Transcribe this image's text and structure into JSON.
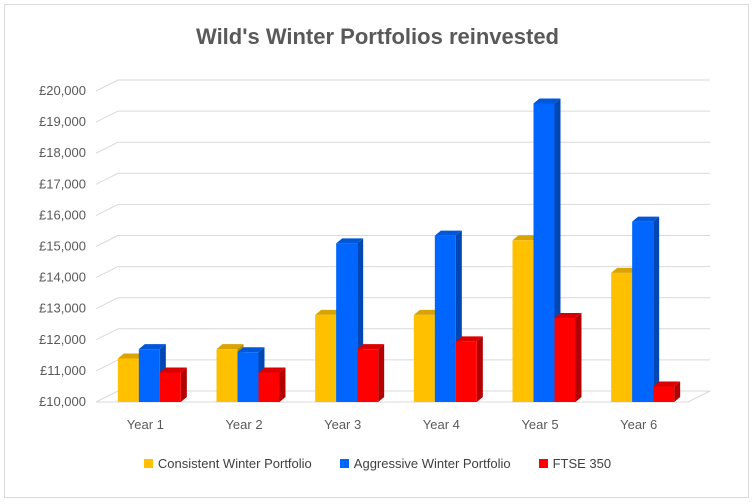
{
  "chart_data": {
    "type": "bar",
    "title": "Wild's Winter Portfolios reinvested",
    "xlabel": "",
    "ylabel": "",
    "categories": [
      "Year 1",
      "Year 2",
      "Year 3",
      "Year 4",
      "Year 5",
      "Year 6"
    ],
    "ylim": [
      10000,
      20000
    ],
    "yticks": [
      "£10,000",
      "£11,000",
      "£12,000",
      "£13,000",
      "£14,000",
      "£15,000",
      "£16,000",
      "£17,000",
      "£18,000",
      "£19,000",
      "£20,000"
    ],
    "grid": true,
    "legend_position": "bottom",
    "style": "3d-column",
    "series": [
      {
        "name": "Consistent Winter Portfolio",
        "color": "#FFC000",
        "values": [
          11400,
          11700,
          12800,
          12800,
          15200,
          14150
        ]
      },
      {
        "name": "Aggressive Winter Portfolio",
        "color": "#0066FF",
        "values": [
          11700,
          11600,
          15100,
          15350,
          19600,
          15800
        ]
      },
      {
        "name": "FTSE 350",
        "color": "#FF0000",
        "values": [
          10950,
          10950,
          11700,
          11950,
          12700,
          10500
        ]
      }
    ]
  }
}
